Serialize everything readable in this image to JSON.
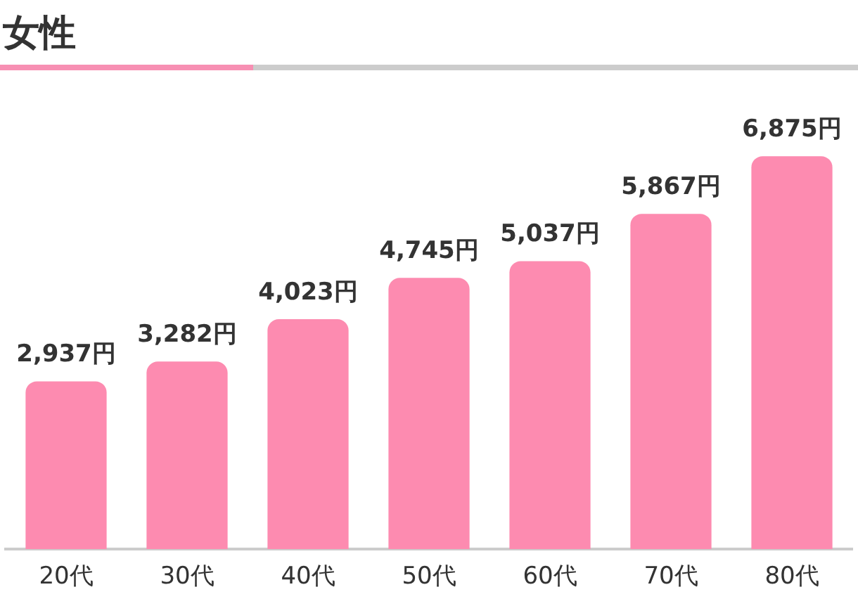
{
  "chart_data": {
    "type": "bar",
    "title": "女性",
    "categories": [
      "20代",
      "30代",
      "40代",
      "50代",
      "60代",
      "70代",
      "80代"
    ],
    "values": [
      2937,
      3282,
      4023,
      4745,
      5037,
      5867,
      6875
    ],
    "value_labels": [
      "2,937円",
      "3,282円",
      "4,023円",
      "4,745円",
      "5,037円",
      "5,867円",
      "6,875円"
    ],
    "color": "#fd8bb0",
    "grid": false,
    "legend": false
  }
}
